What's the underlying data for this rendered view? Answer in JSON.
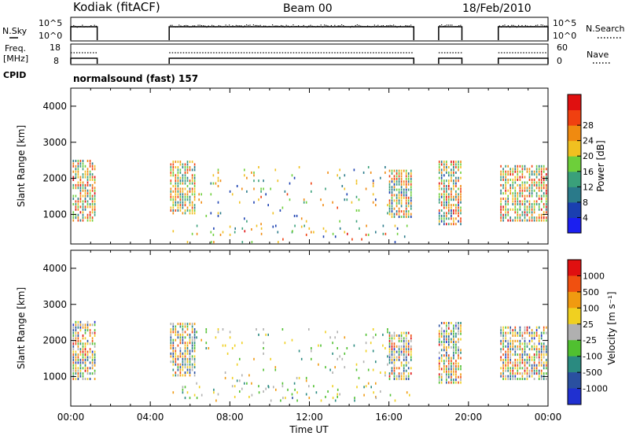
{
  "header": {
    "station": "Kodiak (fitACF)",
    "beam": "Beam 00",
    "date": "18/Feb/2010"
  },
  "strip_nsky": {
    "left_label": "N.Sky",
    "right_label": "N.Search",
    "left_ticks": [
      "10^5",
      "10^0"
    ],
    "right_ticks": [
      "10^5",
      "10^0"
    ]
  },
  "strip_freq": {
    "left_label_top": "Freq.",
    "left_label_bottom": "[MHz]",
    "right_label": "Nave",
    "left_ticks": [
      "18",
      "8"
    ],
    "right_ticks": [
      "60",
      "0"
    ]
  },
  "cpid": {
    "label": "CPID",
    "text": "normalsound (fast) 157"
  },
  "operating_intervals_ut_hours": [
    [
      0.0,
      1.33
    ],
    [
      4.95,
      17.25
    ],
    [
      18.5,
      19.67
    ],
    [
      21.5,
      24.0
    ]
  ],
  "colors": {
    "power": [
      "#1b1ff0",
      "#1a3fb0",
      "#2a7a8a",
      "#3aa07a",
      "#6dcf3a",
      "#f0c020",
      "#f08a10",
      "#f04010",
      "#e01010"
    ],
    "velocity": [
      "#2030d0",
      "#2a50a0",
      "#2a8a80",
      "#50c030",
      "#b0b0b0",
      "#f0d020",
      "#f09a10",
      "#f05010",
      "#e01010"
    ]
  },
  "chart_data": [
    {
      "type": "heatmap",
      "name": "power",
      "xlabel": "",
      "ylabel": "Slant Range [km]",
      "xlim": [
        0,
        24
      ],
      "ylim": [
        180,
        4500
      ],
      "yticks": [
        1000,
        2000,
        3000,
        4000
      ],
      "colorbar": {
        "label": "Power [dB]",
        "ticks": [
          "4",
          "8",
          "12",
          "16",
          "20",
          "24",
          "28"
        ],
        "range": [
          0,
          32
        ]
      },
      "bands": [
        {
          "x": [
            0.1,
            1.2
          ],
          "y": [
            800,
            2500
          ],
          "value_range": [
            8,
            30
          ]
        },
        {
          "x": [
            5.0,
            6.3
          ],
          "y": [
            1000,
            2450
          ],
          "value_range": [
            8,
            28
          ]
        },
        {
          "x": [
            6.3,
            16.0
          ],
          "y": [
            400,
            2300
          ],
          "value_range": [
            4,
            26
          ]
        },
        {
          "x": [
            5.0,
            17.2
          ],
          "y": [
            200,
            700
          ],
          "value_range": [
            4,
            30
          ]
        },
        {
          "x": [
            16.0,
            17.2
          ],
          "y": [
            900,
            2200
          ],
          "value_range": [
            6,
            28
          ]
        },
        {
          "x": [
            18.5,
            19.6
          ],
          "y": [
            700,
            2500
          ],
          "value_range": [
            6,
            30
          ]
        },
        {
          "x": [
            21.6,
            23.9
          ],
          "y": [
            800,
            2350
          ],
          "value_range": [
            8,
            30
          ]
        }
      ]
    },
    {
      "type": "heatmap",
      "name": "velocity",
      "xlabel": "Time UT",
      "ylabel": "Slant Range [km]",
      "xlim": [
        0,
        24
      ],
      "ylim": [
        180,
        4500
      ],
      "xticks": [
        "00:00",
        "04:00",
        "08:00",
        "12:00",
        "16:00",
        "20:00",
        "00:00"
      ],
      "yticks": [
        1000,
        2000,
        3000,
        4000
      ],
      "colorbar": {
        "label": "Velocity [m s⁻¹]",
        "ticks": [
          "1000",
          "500",
          "100",
          "25",
          "-25",
          "-100",
          "-500",
          "-1000"
        ],
        "range": [
          -1200,
          1200
        ]
      },
      "bands": [
        {
          "x": [
            0.1,
            1.2
          ],
          "y": [
            900,
            2500
          ],
          "value_range": [
            -1000,
            1000
          ]
        },
        {
          "x": [
            5.0,
            6.3
          ],
          "y": [
            1000,
            2450
          ],
          "value_range": [
            -800,
            900
          ]
        },
        {
          "x": [
            6.3,
            16.0
          ],
          "y": [
            400,
            2300
          ],
          "value_range": [
            -500,
            500
          ]
        },
        {
          "x": [
            5.0,
            17.2
          ],
          "y": [
            300,
            700
          ],
          "value_range": [
            -700,
            700
          ]
        },
        {
          "x": [
            16.0,
            17.2
          ],
          "y": [
            900,
            2200
          ],
          "value_range": [
            -1000,
            1000
          ]
        },
        {
          "x": [
            18.5,
            19.6
          ],
          "y": [
            800,
            2500
          ],
          "value_range": [
            -1000,
            1000
          ]
        },
        {
          "x": [
            21.6,
            23.9
          ],
          "y": [
            900,
            2350
          ],
          "value_range": [
            -1000,
            1000
          ]
        }
      ]
    }
  ]
}
